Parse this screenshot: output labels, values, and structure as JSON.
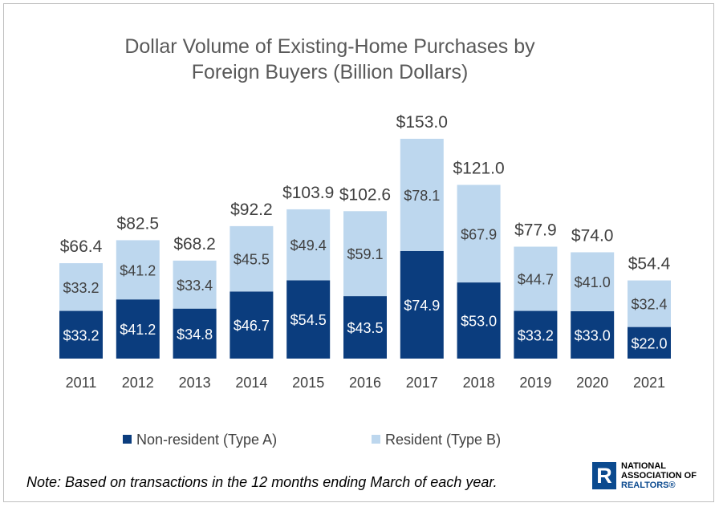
{
  "chart_data": {
    "type": "bar",
    "stacked": true,
    "title": "Dollar Volume of Existing-Home Purchases by Foreign Buyers (Billion Dollars)",
    "title_lines": [
      "Dollar Volume of Existing-Home Purchases by",
      "Foreign Buyers (Billion Dollars)"
    ],
    "categories": [
      "2011",
      "2012",
      "2013",
      "2014",
      "2015",
      "2016",
      "2017",
      "2018",
      "2019",
      "2020",
      "2021"
    ],
    "series": [
      {
        "name": "Non-resident (Type A)",
        "color": "#0b3d7e",
        "values": [
          33.2,
          41.2,
          34.8,
          46.7,
          54.5,
          43.5,
          74.9,
          53.0,
          33.2,
          33.0,
          22.0
        ],
        "labels": [
          "$33.2",
          "$41.2",
          "$34.8",
          "$46.7",
          "$54.5",
          "$43.5",
          "$74.9",
          "$53.0",
          "$33.2",
          "$33.0",
          "$22.0"
        ]
      },
      {
        "name": "Resident (Type B)",
        "color": "#bdd7ee",
        "values": [
          33.2,
          41.2,
          33.4,
          45.5,
          49.4,
          59.1,
          78.1,
          67.9,
          44.7,
          41.0,
          32.4
        ],
        "labels": [
          "$33.2",
          "$41.2",
          "$33.4",
          "$45.5",
          "$49.4",
          "$59.1",
          "$78.1",
          "$67.9",
          "$44.7",
          "$41.0",
          "$32.4"
        ]
      }
    ],
    "totals": [
      66.4,
      82.5,
      68.2,
      92.2,
      103.9,
      102.6,
      153.0,
      121.0,
      77.9,
      74.0,
      54.4
    ],
    "total_labels": [
      "$66.4",
      "$82.5",
      "$68.2",
      "$92.2",
      "$103.9",
      "$102.6",
      "$153.0",
      "$121.0",
      "$77.9",
      "$74.0",
      "$54.4"
    ],
    "ylim": [
      0,
      153
    ],
    "grid": false,
    "legend": "bottom",
    "xlabel": "",
    "ylabel": ""
  },
  "note": "Note: Based on transactions in the 12 months ending March of each year.",
  "logo": {
    "lines": [
      "NATIONAL",
      "ASSOCIATION OF",
      "REALTORS®"
    ],
    "mark": "R",
    "color": "#0b4a8f"
  }
}
